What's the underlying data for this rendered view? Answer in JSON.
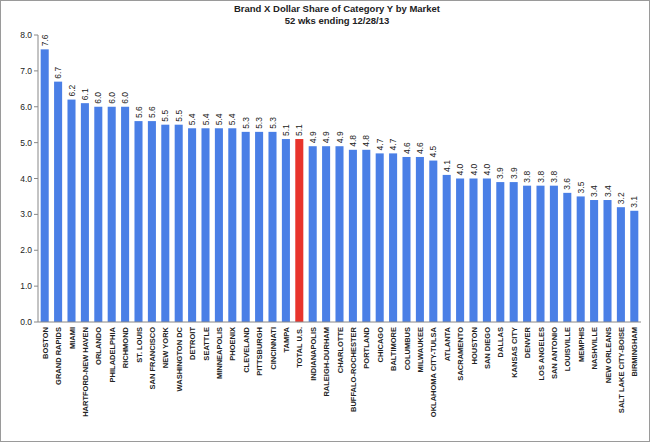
{
  "chart_data": {
    "type": "bar",
    "title": "Brand X Dollar Share of Category Y by Market",
    "subtitle": "52 wks ending 12/28/13",
    "categories": [
      "BOSTON",
      "GRAND RAPIDS",
      "MIAMI",
      "HARTFORD-NEW HAVEN",
      "ORLANDO",
      "PHILADELPHIA",
      "RICHMOND",
      "ST. LOUIS",
      "SAN FRANCISCO",
      "NEW YORK",
      "WASHINGTON DC",
      "DETROIT",
      "SEATTLE",
      "MINNEAPOLIS",
      "PHOENIX",
      "CLEVELAND",
      "PITTSBURGH",
      "CINCINNATI",
      "TAMPA",
      "TOTAL U.S.",
      "INDIANAPOLIS",
      "RALEIGH-DURHAM",
      "CHARLOTTE",
      "BUFFALO-ROCHESTER",
      "PORTLAND",
      "CHICAGO",
      "BALTIMORE",
      "COLUMBUS",
      "MILWAUKEE",
      "OKLAHOMA CITY-TULSA",
      "ATLANTA",
      "SACRAMENTO",
      "HOUSTON",
      "SAN DIEGO",
      "DALLAS",
      "KANSAS CITY",
      "DENVER",
      "LOS ANGELES",
      "SAN ANTONIO",
      "LOUISVILLE",
      "MEMPHIS",
      "NASHVILLE",
      "NEW ORLEANS",
      "SALT LAKE CITY-BOISE",
      "BIRMINGHAM"
    ],
    "values": [
      7.6,
      6.7,
      6.2,
      6.1,
      6.0,
      6.0,
      6.0,
      5.6,
      5.6,
      5.5,
      5.5,
      5.4,
      5.4,
      5.4,
      5.4,
      5.3,
      5.3,
      5.3,
      5.1,
      5.1,
      4.9,
      4.9,
      4.9,
      4.8,
      4.8,
      4.7,
      4.7,
      4.6,
      4.6,
      4.5,
      4.1,
      4.0,
      4.0,
      4.0,
      3.9,
      3.9,
      3.8,
      3.8,
      3.8,
      3.6,
      3.5,
      3.4,
      3.4,
      3.2,
      3.1
    ],
    "value_labels": [
      "7.6",
      "6.7",
      "6.2",
      "6.1",
      "6.0",
      "6.0",
      "6.0",
      "5.6",
      "5.6",
      "5.5",
      "5.5",
      "5.4",
      "5.4",
      "5.4",
      "5.4",
      "5.3",
      "5.3",
      "5.3",
      "5.1",
      "5.1",
      "4.9",
      "4.9",
      "4.9",
      "4.8",
      "4.8",
      "4.7",
      "4.7",
      "4.6",
      "4.6",
      "4.5",
      "4.1",
      "4.0",
      "4.0",
      "4.0",
      "3.9",
      "3.9",
      "3.8",
      "3.8",
      "3.8",
      "3.6",
      "3.5",
      "3.4",
      "3.4",
      "3.2",
      "3.1"
    ],
    "colors": [
      "#4a7fe6",
      "#4a7fe6",
      "#4a7fe6",
      "#4a7fe6",
      "#4a7fe6",
      "#4a7fe6",
      "#4a7fe6",
      "#4a7fe6",
      "#4a7fe6",
      "#4a7fe6",
      "#4a7fe6",
      "#4a7fe6",
      "#4a7fe6",
      "#4a7fe6",
      "#4a7fe6",
      "#4a7fe6",
      "#4a7fe6",
      "#4a7fe6",
      "#4a7fe6",
      "#e8342c",
      "#4a7fe6",
      "#4a7fe6",
      "#4a7fe6",
      "#4a7fe6",
      "#4a7fe6",
      "#4a7fe6",
      "#4a7fe6",
      "#4a7fe6",
      "#4a7fe6",
      "#4a7fe6",
      "#4a7fe6",
      "#4a7fe6",
      "#4a7fe6",
      "#4a7fe6",
      "#4a7fe6",
      "#4a7fe6",
      "#4a7fe6",
      "#4a7fe6",
      "#4a7fe6",
      "#4a7fe6",
      "#4a7fe6",
      "#4a7fe6",
      "#4a7fe6",
      "#4a7fe6",
      "#4a7fe6"
    ],
    "ylim": [
      0,
      8
    ],
    "yticks": [
      {
        "value": 0,
        "label": "0.0"
      },
      {
        "value": 1,
        "label": "1.0"
      },
      {
        "value": 2,
        "label": "2.0"
      },
      {
        "value": 3,
        "label": "3.0"
      },
      {
        "value": 4,
        "label": "4.0"
      },
      {
        "value": 5,
        "label": "5.0"
      },
      {
        "value": 6,
        "label": "6.0"
      },
      {
        "value": 7,
        "label": "7.0"
      },
      {
        "value": 8,
        "label": "8.0"
      }
    ],
    "grid": false,
    "data_labels": true
  }
}
